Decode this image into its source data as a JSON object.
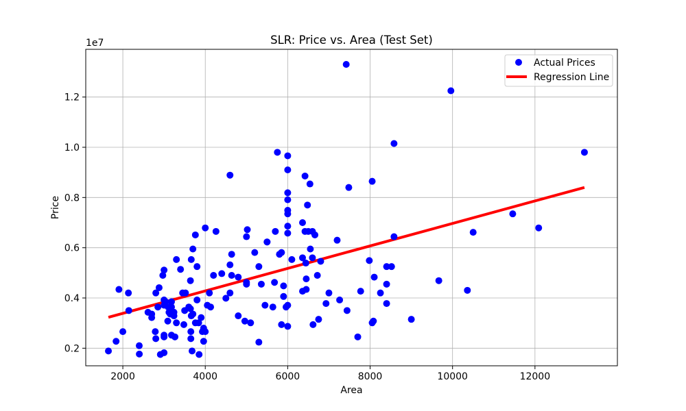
{
  "chart_data": {
    "type": "scatter",
    "title": "SLR: Price vs. Area (Test Set)",
    "xlabel": "Area",
    "ylabel": "Price",
    "y_scale_label": "1e7",
    "xlim": [
      1100,
      14000
    ],
    "ylim": [
      1300000,
      13900000
    ],
    "x_ticks": [
      2000,
      4000,
      6000,
      8000,
      10000,
      12000
    ],
    "x_tick_labels": [
      "2000",
      "4000",
      "6000",
      "8000",
      "10000",
      "12000"
    ],
    "y_ticks": [
      2000000,
      4000000,
      6000000,
      8000000,
      10000000,
      12000000
    ],
    "y_tick_labels": [
      "0.2",
      "0.4",
      "0.6",
      "0.8",
      "1.0",
      "1.2"
    ],
    "grid": true,
    "legend_position": "top-right",
    "colors": {
      "points": "#0000ff",
      "line": "#ff0000",
      "grid": "#b0b0b0"
    },
    "series": [
      {
        "name": "Actual Prices",
        "kind": "scatter",
        "points": [
          [
            1650,
            1890000
          ],
          [
            1836,
            2275000
          ],
          [
            1905,
            4340000
          ],
          [
            2000,
            2660000
          ],
          [
            2135,
            4200000
          ],
          [
            2145,
            3500000
          ],
          [
            2398,
            2100000
          ],
          [
            2400,
            1767000
          ],
          [
            2610,
            3430000
          ],
          [
            2700,
            3220000
          ],
          [
            2700,
            3360000
          ],
          [
            2787,
            2660000
          ],
          [
            2800,
            2380000
          ],
          [
            2800,
            4200000
          ],
          [
            2850,
            3640000
          ],
          [
            2880,
            4410000
          ],
          [
            2910,
            1750000
          ],
          [
            2970,
            4900000
          ],
          [
            3000,
            5110000
          ],
          [
            3000,
            1820000
          ],
          [
            3000,
            2520000
          ],
          [
            3000,
            3710000
          ],
          [
            3000,
            3920000
          ],
          [
            3000,
            2450000
          ],
          [
            3040,
            3850000
          ],
          [
            3090,
            3080000
          ],
          [
            3100,
            3640000
          ],
          [
            3120,
            3430000
          ],
          [
            3150,
            3360000
          ],
          [
            3180,
            3850000
          ],
          [
            3180,
            3640000
          ],
          [
            3180,
            2520000
          ],
          [
            3240,
            3290000
          ],
          [
            3240,
            3430000
          ],
          [
            3264,
            2450000
          ],
          [
            3300,
            3010000
          ],
          [
            3300,
            5530000
          ],
          [
            3400,
            5140000
          ],
          [
            3450,
            4200000
          ],
          [
            3480,
            2940000
          ],
          [
            3500,
            3500000
          ],
          [
            3520,
            4200000
          ],
          [
            3600,
            3640000
          ],
          [
            3640,
            4690000
          ],
          [
            3640,
            3570000
          ],
          [
            3650,
            2660000
          ],
          [
            3650,
            2380000
          ],
          [
            3660,
            5530000
          ],
          [
            3660,
            3290000
          ],
          [
            3680,
            1890000
          ],
          [
            3700,
            5950000
          ],
          [
            3700,
            3360000
          ],
          [
            3760,
            6510000
          ],
          [
            3760,
            3010000
          ],
          [
            3800,
            5250000
          ],
          [
            3800,
            3920000
          ],
          [
            3840,
            3010000
          ],
          [
            3850,
            1750000
          ],
          [
            3900,
            3220000
          ],
          [
            3930,
            2660000
          ],
          [
            3960,
            2800000
          ],
          [
            3960,
            2275000
          ],
          [
            4000,
            6790000
          ],
          [
            4000,
            2660000
          ],
          [
            4050,
            3710000
          ],
          [
            4100,
            4200000
          ],
          [
            4130,
            3640000
          ],
          [
            4200,
            4900000
          ],
          [
            4260,
            6650000
          ],
          [
            4400,
            4970000
          ],
          [
            4500,
            3990000
          ],
          [
            4600,
            8890000
          ],
          [
            4600,
            4200000
          ],
          [
            4600,
            5320000
          ],
          [
            4640,
            4900000
          ],
          [
            4640,
            5740000
          ],
          [
            4800,
            3290000
          ],
          [
            4800,
            4830000
          ],
          [
            4960,
            3080000
          ],
          [
            5000,
            6440000
          ],
          [
            5000,
            4550000
          ],
          [
            5000,
            4620000
          ],
          [
            5020,
            6720000
          ],
          [
            5100,
            3010000
          ],
          [
            5200,
            5810000
          ],
          [
            5300,
            5250000
          ],
          [
            5300,
            2240000
          ],
          [
            5360,
            4550000
          ],
          [
            5450,
            3710000
          ],
          [
            5500,
            6230000
          ],
          [
            5500,
            6230000
          ],
          [
            5640,
            3640000
          ],
          [
            5680,
            4620000
          ],
          [
            5700,
            6650000
          ],
          [
            5750,
            9800000
          ],
          [
            5800,
            5740000
          ],
          [
            5850,
            5810000
          ],
          [
            5850,
            2940000
          ],
          [
            5900,
            4480000
          ],
          [
            5900,
            4060000
          ],
          [
            5960,
            3640000
          ],
          [
            6000,
            8190000
          ],
          [
            6000,
            7910000
          ],
          [
            6000,
            9100000
          ],
          [
            6000,
            7490000
          ],
          [
            6000,
            7350000
          ],
          [
            6000,
            6860000
          ],
          [
            6000,
            9660000
          ],
          [
            6000,
            6580000
          ],
          [
            6000,
            3710000
          ],
          [
            6000,
            2870000
          ],
          [
            6100,
            5530000
          ],
          [
            6360,
            5600000
          ],
          [
            6360,
            7000000
          ],
          [
            6360,
            4270000
          ],
          [
            6420,
            8855000
          ],
          [
            6420,
            6650000
          ],
          [
            6440,
            5390000
          ],
          [
            6450,
            4340000
          ],
          [
            6450,
            4760000
          ],
          [
            6480,
            7700000
          ],
          [
            6500,
            6650000
          ],
          [
            6540,
            8540000
          ],
          [
            6550,
            5950000
          ],
          [
            6600,
            6650000
          ],
          [
            6600,
            5600000
          ],
          [
            6615,
            2940000
          ],
          [
            6660,
            6510000
          ],
          [
            6720,
            4900000
          ],
          [
            6750,
            3150000
          ],
          [
            6800,
            5460000
          ],
          [
            6930,
            3780000
          ],
          [
            7000,
            4200000
          ],
          [
            7200,
            6300000
          ],
          [
            7260,
            3920000
          ],
          [
            7420,
            13300000
          ],
          [
            7440,
            3500000
          ],
          [
            7482,
            8400000
          ],
          [
            7700,
            2450000
          ],
          [
            7770,
            4270000
          ],
          [
            7980,
            5490000
          ],
          [
            8050,
            8645000
          ],
          [
            8050,
            3010000
          ],
          [
            8080,
            3080000
          ],
          [
            8100,
            4830000
          ],
          [
            8250,
            4200000
          ],
          [
            8400,
            5250000
          ],
          [
            8400,
            4550000
          ],
          [
            8400,
            3780000
          ],
          [
            8520,
            5250000
          ],
          [
            8580,
            10150000
          ],
          [
            8580,
            6440000
          ],
          [
            9000,
            3150000
          ],
          [
            9667,
            4690000
          ],
          [
            9960,
            12250000
          ],
          [
            10360,
            4305000
          ],
          [
            10500,
            6615000
          ],
          [
            11460,
            7350000
          ],
          [
            12090,
            6790000
          ],
          [
            13200,
            9800000
          ]
        ]
      },
      {
        "name": "Regression Line",
        "kind": "line",
        "points": [
          [
            1650,
            3230000
          ],
          [
            13200,
            8400000
          ]
        ]
      }
    ]
  }
}
